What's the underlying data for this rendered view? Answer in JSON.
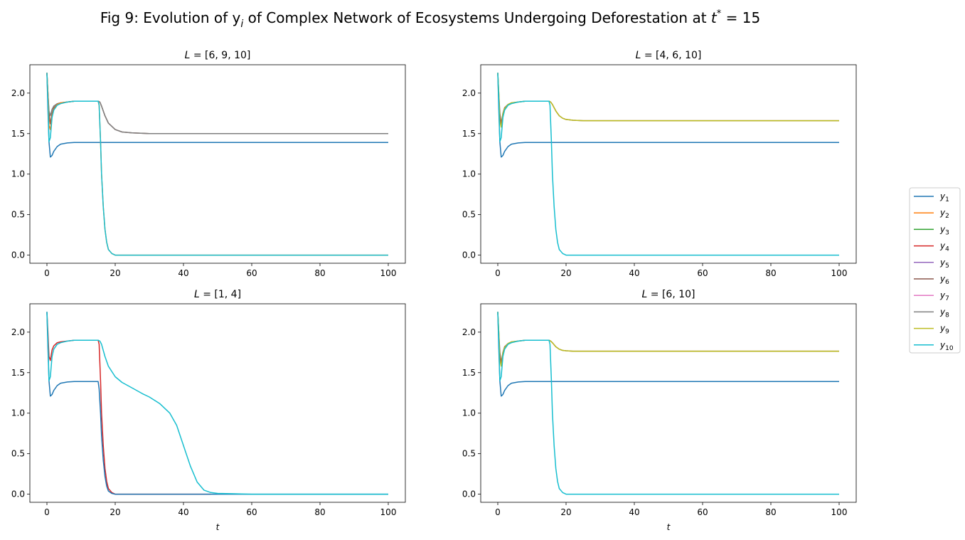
{
  "figure": {
    "title": "Fig 9: Evolution of y",
    "title_sub": "i",
    "title_mid": " of Complex Network of Ecosystems Undergoing Deforestation at ",
    "title_t": "t",
    "title_star": "*",
    "title_end": " =  15"
  },
  "legend": {
    "placement": "right",
    "items": [
      {
        "base": "y",
        "sub": "1",
        "color": "#1f77b4"
      },
      {
        "base": "y",
        "sub": "2",
        "color": "#ff7f0e"
      },
      {
        "base": "y",
        "sub": "3",
        "color": "#2ca02c"
      },
      {
        "base": "y",
        "sub": "4",
        "color": "#d62728"
      },
      {
        "base": "y",
        "sub": "5",
        "color": "#9467bd"
      },
      {
        "base": "y",
        "sub": "6",
        "color": "#8c564b"
      },
      {
        "base": "y",
        "sub": "7",
        "color": "#e377c2"
      },
      {
        "base": "y",
        "sub": "8",
        "color": "#7f7f7f"
      },
      {
        "base": "y",
        "sub": "9",
        "color": "#bcbd22"
      },
      {
        "base": "y",
        "sub": "10",
        "color": "#17becf"
      }
    ]
  },
  "chart_data": [
    {
      "type": "line",
      "title_var": "L",
      "title_rest": " = [6, 9, 10]",
      "xlabel": "",
      "xlim": [
        0,
        100
      ],
      "ylim": [
        -0.1,
        2.35
      ],
      "xticks": [
        0,
        20,
        40,
        60,
        80,
        100
      ],
      "yticks": [
        0.0,
        0.5,
        1.0,
        1.5,
        2.0
      ],
      "ytick_labels": [
        "0.0",
        "0.5",
        "1.0",
        "1.5",
        "2.0"
      ],
      "grid": false,
      "series": [
        {
          "name": "y1",
          "color": "#1f77b4",
          "x": [
            0,
            0.3,
            0.6,
            1,
            1.5,
            2,
            3,
            4,
            6,
            8,
            10,
            15,
            20,
            40,
            60,
            100
          ],
          "y": [
            2.25,
            1.8,
            1.4,
            1.21,
            1.23,
            1.28,
            1.34,
            1.37,
            1.385,
            1.39,
            1.39,
            1.39,
            1.39,
            1.39,
            1.39,
            1.39
          ]
        },
        {
          "name": "y6",
          "color": "#8c564b",
          "x": [
            0,
            0.3,
            0.6,
            1,
            1.5,
            2,
            3,
            4,
            6,
            8,
            10,
            15,
            15.5,
            16,
            17,
            18,
            20,
            22,
            25,
            30,
            40,
            100
          ],
          "y": [
            2.25,
            2.0,
            1.75,
            1.62,
            1.75,
            1.82,
            1.86,
            1.88,
            1.89,
            1.9,
            1.9,
            1.9,
            1.89,
            1.84,
            1.72,
            1.63,
            1.55,
            1.52,
            1.51,
            1.5,
            1.5,
            1.5
          ]
        },
        {
          "name": "y8",
          "color": "#7f7f7f",
          "x": [
            0,
            0.3,
            0.6,
            1,
            1.5,
            2,
            3,
            4,
            6,
            8,
            10,
            15,
            15.5,
            16,
            17,
            18,
            20,
            22,
            25,
            30,
            40,
            100
          ],
          "y": [
            2.25,
            2.0,
            1.78,
            1.72,
            1.8,
            1.84,
            1.87,
            1.88,
            1.89,
            1.9,
            1.9,
            1.9,
            1.89,
            1.84,
            1.72,
            1.63,
            1.55,
            1.52,
            1.51,
            1.5,
            1.5,
            1.5
          ]
        },
        {
          "name": "y2",
          "color": "#ff7f0e",
          "x": [
            0,
            0.3,
            0.6,
            1,
            1.5,
            2,
            3,
            4,
            6,
            8,
            10,
            15,
            15.3,
            15.7,
            16,
            16.5,
            17,
            17.5,
            18,
            19,
            20,
            22,
            100
          ],
          "y": [
            2.25,
            2.0,
            1.6,
            1.55,
            1.72,
            1.8,
            1.86,
            1.88,
            1.89,
            1.9,
            1.9,
            1.9,
            1.85,
            1.4,
            1.0,
            0.6,
            0.32,
            0.16,
            0.07,
            0.02,
            0.0,
            0.0,
            0.0
          ]
        },
        {
          "name": "y10",
          "color": "#17becf",
          "x": [
            0,
            0.3,
            0.6,
            1,
            1.5,
            2,
            3,
            4,
            6,
            8,
            10,
            15,
            15.3,
            15.7,
            16,
            16.5,
            17,
            17.5,
            18,
            19,
            20,
            22,
            100
          ],
          "y": [
            2.25,
            1.9,
            1.4,
            1.45,
            1.7,
            1.79,
            1.85,
            1.87,
            1.89,
            1.9,
            1.9,
            1.9,
            1.85,
            1.4,
            1.0,
            0.6,
            0.32,
            0.16,
            0.07,
            0.02,
            0.0,
            0.0,
            0.0
          ]
        }
      ]
    },
    {
      "type": "line",
      "title_var": "L",
      "title_rest": " = [4, 6, 10]",
      "xlabel": "",
      "xlim": [
        0,
        100
      ],
      "ylim": [
        -0.1,
        2.35
      ],
      "xticks": [
        0,
        20,
        40,
        60,
        80,
        100
      ],
      "yticks": [
        0.0,
        0.5,
        1.0,
        1.5,
        2.0
      ],
      "ytick_labels": [
        "0.0",
        "0.5",
        "1.0",
        "1.5",
        "2.0"
      ],
      "grid": false,
      "series": [
        {
          "name": "y1",
          "color": "#1f77b4",
          "x": [
            0,
            0.3,
            0.6,
            1,
            1.5,
            2,
            3,
            4,
            6,
            8,
            10,
            15,
            20,
            40,
            60,
            100
          ],
          "y": [
            2.25,
            1.8,
            1.4,
            1.21,
            1.23,
            1.28,
            1.34,
            1.37,
            1.385,
            1.39,
            1.39,
            1.39,
            1.39,
            1.39,
            1.39,
            1.39
          ]
        },
        {
          "name": "y6",
          "color": "#8c564b",
          "x": [
            0,
            0.3,
            0.6,
            1,
            1.5,
            2,
            3,
            4,
            6,
            8,
            10,
            15,
            15.5,
            16,
            17,
            18,
            19,
            20,
            22,
            25,
            100
          ],
          "y": [
            2.25,
            2.0,
            1.75,
            1.62,
            1.75,
            1.82,
            1.86,
            1.88,
            1.89,
            1.9,
            1.9,
            1.9,
            1.89,
            1.86,
            1.78,
            1.72,
            1.69,
            1.675,
            1.665,
            1.66,
            1.66
          ]
        },
        {
          "name": "y9",
          "color": "#bcbd22",
          "x": [
            0,
            0.3,
            0.6,
            1,
            1.5,
            2,
            3,
            4,
            6,
            8,
            10,
            15,
            15.5,
            16,
            17,
            18,
            19,
            20,
            22,
            25,
            100
          ],
          "y": [
            2.25,
            2.0,
            1.65,
            1.58,
            1.74,
            1.81,
            1.86,
            1.88,
            1.89,
            1.9,
            1.9,
            1.9,
            1.89,
            1.86,
            1.78,
            1.72,
            1.69,
            1.675,
            1.665,
            1.66,
            1.66
          ]
        },
        {
          "name": "y10",
          "color": "#17becf",
          "x": [
            0,
            0.3,
            0.6,
            1,
            1.5,
            2,
            3,
            4,
            6,
            8,
            10,
            15,
            15.3,
            15.7,
            16,
            16.5,
            17,
            17.5,
            18,
            19,
            20,
            22,
            100
          ],
          "y": [
            2.25,
            1.9,
            1.4,
            1.45,
            1.7,
            1.79,
            1.85,
            1.87,
            1.89,
            1.9,
            1.9,
            1.9,
            1.85,
            1.4,
            1.0,
            0.6,
            0.32,
            0.16,
            0.07,
            0.02,
            0.0,
            0.0,
            0.0
          ]
        }
      ]
    },
    {
      "type": "line",
      "title_var": "L",
      "title_rest": " = [1, 4]",
      "xlabel": "t",
      "xlim": [
        0,
        100
      ],
      "ylim": [
        -0.1,
        2.35
      ],
      "xticks": [
        0,
        20,
        40,
        60,
        80,
        100
      ],
      "yticks": [
        0.0,
        0.5,
        1.0,
        1.5,
        2.0
      ],
      "ytick_labels": [
        "0.0",
        "0.5",
        "1.0",
        "1.5",
        "2.0"
      ],
      "grid": false,
      "series": [
        {
          "name": "y4",
          "color": "#d62728",
          "x": [
            0,
            0.3,
            0.6,
            1,
            1.5,
            2,
            3,
            4,
            6,
            8,
            10,
            15,
            15.3,
            15.7,
            16,
            16.5,
            17,
            17.5,
            18,
            19,
            20,
            22,
            48
          ],
          "y": [
            2.25,
            2.0,
            1.7,
            1.65,
            1.78,
            1.83,
            1.87,
            1.88,
            1.89,
            1.9,
            1.9,
            1.9,
            1.85,
            1.4,
            1.0,
            0.6,
            0.32,
            0.16,
            0.07,
            0.02,
            0.0,
            0.0,
            0.0
          ]
        },
        {
          "name": "y1",
          "color": "#1f77b4",
          "x": [
            0,
            0.3,
            0.6,
            1,
            1.5,
            2,
            3,
            4,
            6,
            8,
            10,
            15,
            15.3,
            15.7,
            16,
            16.5,
            17,
            17.5,
            18,
            19,
            20,
            22,
            100
          ],
          "y": [
            2.25,
            1.8,
            1.4,
            1.21,
            1.23,
            1.28,
            1.34,
            1.37,
            1.385,
            1.39,
            1.39,
            1.39,
            1.3,
            1.0,
            0.72,
            0.42,
            0.22,
            0.1,
            0.04,
            0.01,
            0.0,
            0.0,
            0.0
          ]
        },
        {
          "name": "y10",
          "color": "#17becf",
          "x": [
            0,
            0.3,
            0.6,
            1,
            1.5,
            2,
            3,
            4,
            6,
            8,
            10,
            15,
            15.5,
            16,
            17,
            18,
            20,
            22,
            25,
            28,
            30,
            33,
            36,
            38,
            40,
            42,
            44,
            46,
            48,
            50,
            55,
            60,
            100
          ],
          "y": [
            2.25,
            1.9,
            1.4,
            1.45,
            1.7,
            1.79,
            1.85,
            1.87,
            1.89,
            1.9,
            1.9,
            1.9,
            1.89,
            1.85,
            1.7,
            1.58,
            1.45,
            1.38,
            1.31,
            1.24,
            1.2,
            1.12,
            1.0,
            0.85,
            0.6,
            0.35,
            0.15,
            0.05,
            0.02,
            0.01,
            0.005,
            0.0,
            0.0
          ]
        }
      ]
    },
    {
      "type": "line",
      "title_var": "L",
      "title_rest": " = [6, 10]",
      "xlabel": "t",
      "xlim": [
        0,
        100
      ],
      "ylim": [
        -0.1,
        2.35
      ],
      "xticks": [
        0,
        20,
        40,
        60,
        80,
        100
      ],
      "yticks": [
        0.0,
        0.5,
        1.0,
        1.5,
        2.0
      ],
      "ytick_labels": [
        "0.0",
        "0.5",
        "1.0",
        "1.5",
        "2.0"
      ],
      "grid": false,
      "series": [
        {
          "name": "y1",
          "color": "#1f77b4",
          "x": [
            0,
            0.3,
            0.6,
            1,
            1.5,
            2,
            3,
            4,
            6,
            8,
            10,
            15,
            20,
            40,
            60,
            100
          ],
          "y": [
            2.25,
            1.8,
            1.4,
            1.21,
            1.23,
            1.28,
            1.34,
            1.37,
            1.385,
            1.39,
            1.39,
            1.39,
            1.39,
            1.39,
            1.39,
            1.39
          ]
        },
        {
          "name": "y6",
          "color": "#8c564b",
          "x": [
            0,
            0.3,
            0.6,
            1,
            1.5,
            2,
            3,
            4,
            6,
            8,
            10,
            15,
            15.5,
            16,
            17,
            18,
            19,
            20,
            22,
            25,
            100
          ],
          "y": [
            2.25,
            2.0,
            1.75,
            1.62,
            1.75,
            1.82,
            1.86,
            1.88,
            1.89,
            1.9,
            1.9,
            1.9,
            1.89,
            1.87,
            1.82,
            1.79,
            1.775,
            1.77,
            1.765,
            1.765,
            1.765
          ]
        },
        {
          "name": "y9",
          "color": "#bcbd22",
          "x": [
            0,
            0.3,
            0.6,
            1,
            1.5,
            2,
            3,
            4,
            6,
            8,
            10,
            15,
            15.5,
            16,
            17,
            18,
            19,
            20,
            22,
            25,
            100
          ],
          "y": [
            2.25,
            2.0,
            1.65,
            1.58,
            1.74,
            1.81,
            1.86,
            1.88,
            1.89,
            1.9,
            1.9,
            1.9,
            1.89,
            1.87,
            1.82,
            1.79,
            1.775,
            1.77,
            1.765,
            1.765,
            1.765
          ]
        },
        {
          "name": "y10",
          "color": "#17becf",
          "x": [
            0,
            0.3,
            0.6,
            1,
            1.5,
            2,
            3,
            4,
            6,
            8,
            10,
            15,
            15.3,
            15.7,
            16,
            16.5,
            17,
            17.5,
            18,
            19,
            20,
            22,
            100
          ],
          "y": [
            2.25,
            1.9,
            1.4,
            1.45,
            1.7,
            1.79,
            1.85,
            1.87,
            1.89,
            1.9,
            1.9,
            1.9,
            1.85,
            1.4,
            1.0,
            0.6,
            0.32,
            0.16,
            0.07,
            0.02,
            0.0,
            0.0,
            0.0
          ]
        }
      ]
    }
  ]
}
